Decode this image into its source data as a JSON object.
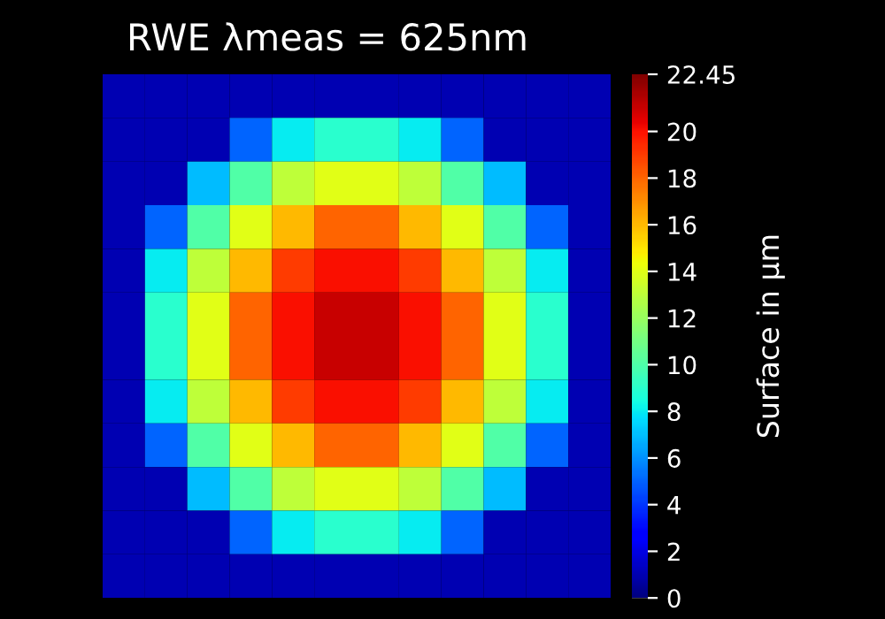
{
  "chart_data": {
    "type": "heatmap",
    "title": "RWE λmeas = 625nm",
    "clabel": "Surface in µm",
    "categories": [
      null,
      null,
      null,
      null,
      null,
      null,
      null,
      null,
      null,
      null,
      null,
      null
    ],
    "y_categories": [
      null,
      null,
      null,
      null,
      null,
      null,
      null,
      null,
      null,
      null,
      null,
      null
    ],
    "cells": [
      [
        1,
        1,
        1,
        1,
        1,
        1,
        1,
        1,
        1,
        1,
        1,
        1
      ],
      [
        1,
        1,
        1,
        5,
        8,
        9,
        9,
        8,
        5,
        1,
        1,
        1
      ],
      [
        1,
        1,
        7,
        10,
        13,
        14,
        14,
        13,
        10,
        7,
        1,
        1
      ],
      [
        1,
        5,
        10,
        14,
        16,
        18,
        18,
        16,
        14,
        10,
        5,
        1
      ],
      [
        1,
        8,
        13,
        16,
        19,
        20,
        20,
        19,
        16,
        13,
        8,
        1
      ],
      [
        1,
        9,
        14,
        18,
        20,
        21,
        21,
        20,
        18,
        14,
        9,
        1
      ],
      [
        1,
        9,
        14,
        18,
        20,
        21,
        21,
        20,
        18,
        14,
        9,
        1
      ],
      [
        1,
        8,
        13,
        16,
        19,
        20,
        20,
        19,
        16,
        13,
        8,
        1
      ],
      [
        1,
        5,
        10,
        14,
        16,
        18,
        18,
        16,
        14,
        10,
        5,
        1
      ],
      [
        1,
        1,
        7,
        10,
        13,
        14,
        14,
        13,
        10,
        7,
        1,
        1
      ],
      [
        1,
        1,
        1,
        5,
        8,
        9,
        9,
        8,
        5,
        1,
        1,
        1
      ],
      [
        1,
        1,
        1,
        1,
        1,
        1,
        1,
        1,
        1,
        1,
        1,
        1
      ]
    ],
    "clim": [
      0,
      22.45
    ],
    "cticks": [
      0,
      2,
      4,
      6,
      8,
      10,
      12,
      14,
      16,
      18,
      20,
      22.45
    ]
  }
}
